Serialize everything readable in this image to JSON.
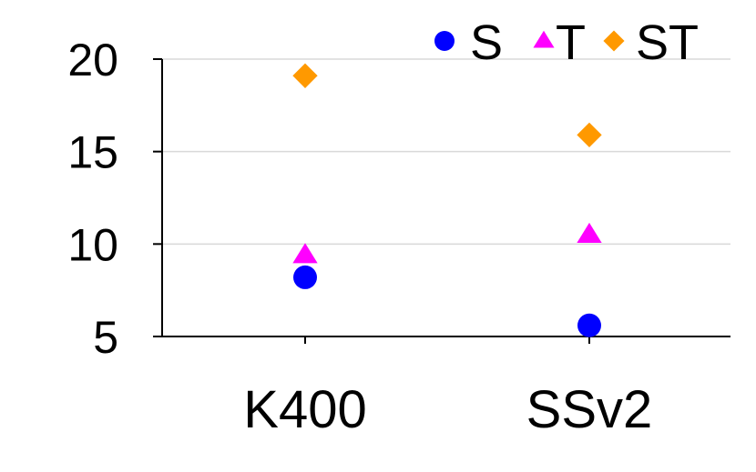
{
  "chart_data": {
    "type": "scatter",
    "title": "",
    "xlabel": "",
    "ylabel": "",
    "categories": [
      "K400",
      "SSv2"
    ],
    "ylim": [
      5,
      20
    ],
    "yticks": [
      5,
      10,
      15,
      20
    ],
    "grid": true,
    "legend_position": "top-right",
    "series": [
      {
        "name": "S",
        "marker": "circle",
        "color": "#0000ff",
        "values": [
          8.2,
          5.6
        ]
      },
      {
        "name": "T",
        "marker": "triangle",
        "color": "#ff00ff",
        "values": [
          9.4,
          10.5
        ]
      },
      {
        "name": "ST",
        "marker": "diamond",
        "color": "#ff9900",
        "values": [
          19.1,
          15.9
        ]
      }
    ]
  }
}
